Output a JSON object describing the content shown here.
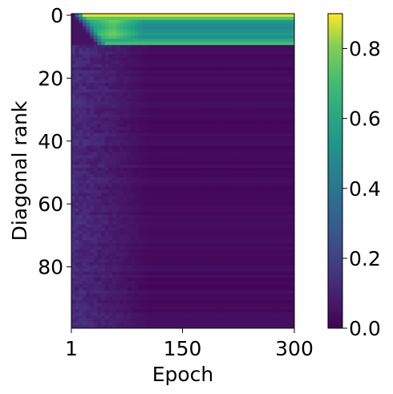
{
  "chart_data": {
    "type": "heatmap",
    "title": "",
    "xlabel": "Epoch",
    "ylabel": "Diagonal rank",
    "x_range": [
      1,
      300
    ],
    "y_range": [
      0,
      99
    ],
    "x_ticks": [
      {
        "value": 1,
        "label": "1"
      },
      {
        "value": 150,
        "label": "150"
      },
      {
        "value": 300,
        "label": "300"
      }
    ],
    "y_ticks": [
      {
        "value": 0,
        "label": "0"
      },
      {
        "value": 20,
        "label": "20"
      },
      {
        "value": 40,
        "label": "40"
      },
      {
        "value": 60,
        "label": "60"
      },
      {
        "value": 80,
        "label": "80"
      }
    ],
    "colorbar": {
      "colormap": "viridis",
      "range": [
        0,
        0.9
      ],
      "ticks": [
        {
          "value": 0.0,
          "label": "0.0"
        },
        {
          "value": 0.2,
          "label": "0.2"
        },
        {
          "value": 0.4,
          "label": "0.4"
        },
        {
          "value": 0.6,
          "label": "0.6"
        },
        {
          "value": 0.8,
          "label": "0.8"
        }
      ]
    },
    "grid": false,
    "rows": 100,
    "columns": 60,
    "row_profile": [
      {
        "rank": 0,
        "value": 0.88
      },
      {
        "rank": 1,
        "value": 0.75
      },
      {
        "rank": 2,
        "value": 0.55
      },
      {
        "rank": 3,
        "value": 0.5
      },
      {
        "rank": 4,
        "value": 0.48
      },
      {
        "rank": 5,
        "value": 0.52
      },
      {
        "rank": 6,
        "value": 0.55
      },
      {
        "rank": 7,
        "value": 0.5
      },
      {
        "rank": 8,
        "value": 0.62
      },
      {
        "rank": 9,
        "value": 0.7
      },
      {
        "rank": 10,
        "value": 0.03
      },
      {
        "rank": 99,
        "value": 0.03
      }
    ]
  }
}
